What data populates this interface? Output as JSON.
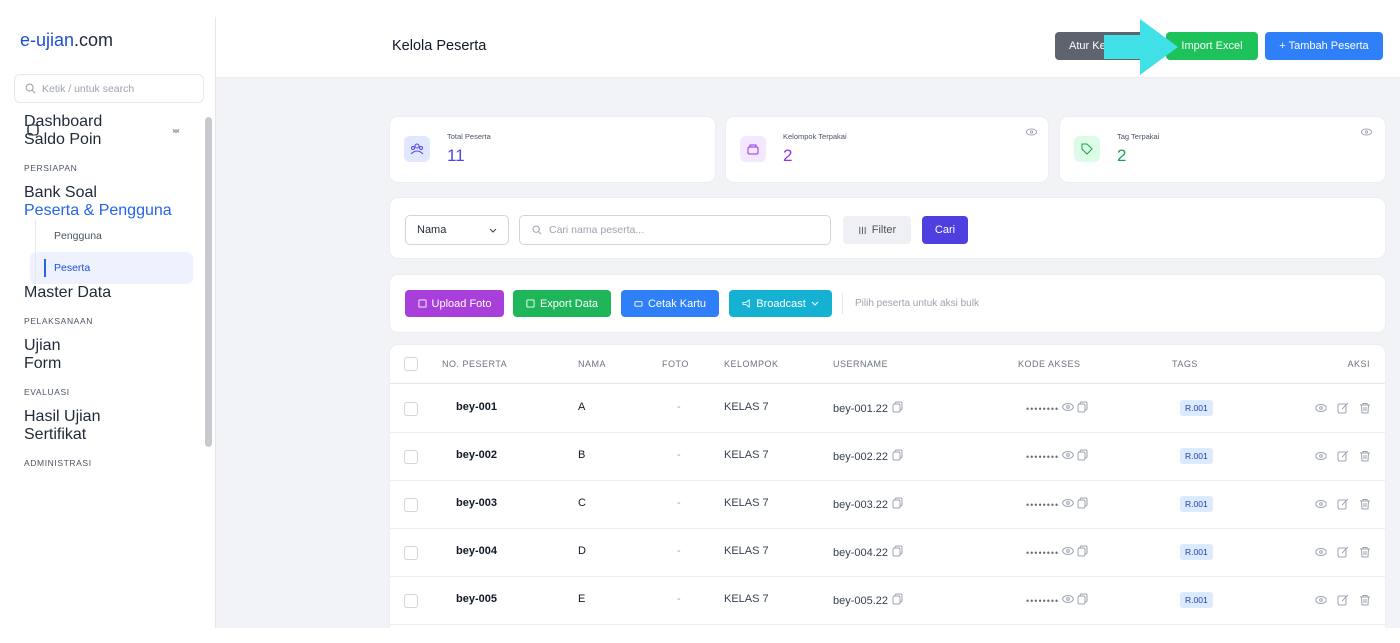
{
  "sidebar": {
    "brand": {
      "name": "e-ujian",
      "suffix": ".com"
    },
    "search_placeholder": "Ketik / untuk search",
    "top_items": [
      "Dashboard",
      "Saldo Poin"
    ],
    "sections": [
      {
        "title": "PERSIAPAN",
        "items": [
          {
            "label": "Bank Soal",
            "expanded": false
          },
          {
            "label": "Peserta & Pengguna",
            "expanded": true,
            "children": [
              {
                "label": "Pengguna",
                "active": false
              },
              {
                "label": "Peserta",
                "active": true
              }
            ]
          },
          {
            "label": "Master Data",
            "expanded": false
          }
        ]
      },
      {
        "title": "PELAKSANAAN",
        "items": [
          {
            "label": "Ujian",
            "expanded": false
          },
          {
            "label": "Form",
            "expanded": false
          }
        ]
      },
      {
        "title": "EVALUASI",
        "items": [
          {
            "label": "Hasil Ujian",
            "expanded": false
          },
          {
            "label": "Sertifikat",
            "expanded": false
          }
        ]
      },
      {
        "title": "ADMINISTRASI",
        "items": []
      }
    ]
  },
  "header": {
    "title": "Kelola Peserta",
    "buttons": [
      "Atur Ke",
      "Import Excel",
      "+ Tambah Peserta"
    ]
  },
  "stats": [
    {
      "label": "Total Peserta",
      "value": "11"
    },
    {
      "label": "Kelompok Terpakai",
      "value": "2"
    },
    {
      "label": "Tag Terpakai",
      "value": "2"
    }
  ],
  "filter": {
    "select": "Nama",
    "search_placeholder": "Cari nama peserta...",
    "filter_button": "Filter",
    "search_button": "Cari"
  },
  "bulk": {
    "buttons": [
      "Upload Foto",
      "Export Data",
      "Cetak Kartu",
      "Broadcast"
    ],
    "hint": "Pilih peserta untuk aksi bulk"
  },
  "table": {
    "columns": [
      "NO. PESERTA",
      "NAMA",
      "FOTO",
      "KELOMPOK",
      "USERNAME",
      "KODE AKSES",
      "TAGS",
      "AKSI"
    ],
    "rows": [
      [
        "bey-001",
        "A",
        "-",
        "KELAS 7",
        "bey-001.22",
        "••••••••",
        "R.001"
      ],
      [
        "bey-002",
        "B",
        "-",
        "KELAS 7",
        "bey-002.22",
        "••••••••",
        "R.001"
      ],
      [
        "bey-003",
        "C",
        "-",
        "KELAS 7",
        "bey-003.22",
        "••••••••",
        "R.001"
      ],
      [
        "bey-004",
        "D",
        "-",
        "KELAS 7",
        "bey-004.22",
        "••••••••",
        "R.001"
      ],
      [
        "bey-005",
        "E",
        "-",
        "KELAS 7",
        "bey-005.22",
        "••••••••",
        "R.001"
      ]
    ]
  }
}
